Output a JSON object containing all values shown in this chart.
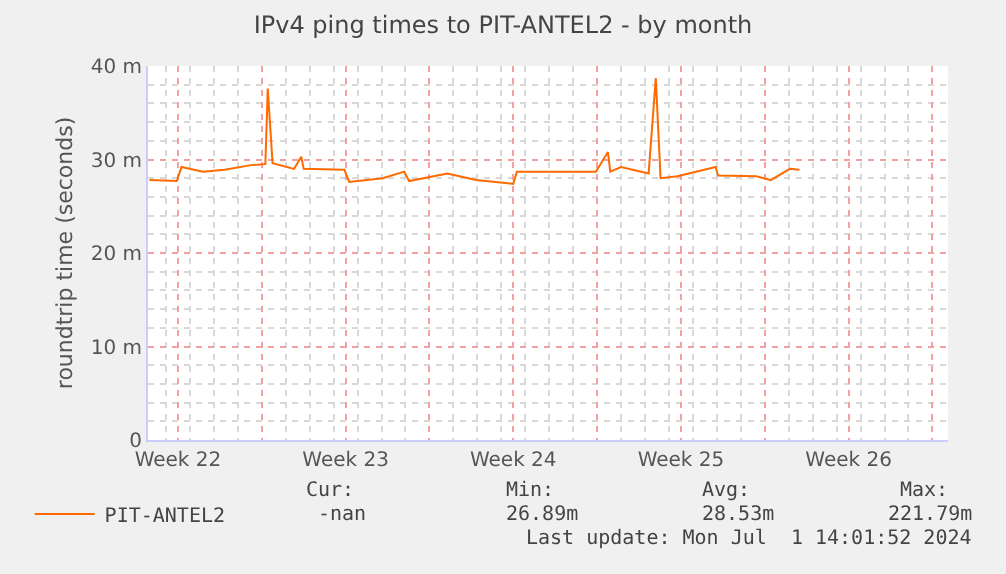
{
  "chart_data": {
    "type": "line",
    "title": "IPv4 ping times to PIT-ANTEL2 - by month",
    "ylabel": "roundtrip time (seconds)",
    "x": [
      "2024-05-29T07:30",
      "2024-05-30T10:50",
      "2024-05-30T15:36",
      "2024-05-31T13:12",
      "2024-06-01T10:48",
      "2024-06-02T13:12",
      "2024-06-03T03:36",
      "2024-06-03T06:00",
      "2024-06-03T10:48",
      "2024-06-04T08:24",
      "2024-06-04T15:36",
      "2024-06-04T18:00",
      "2024-06-06T10:48",
      "2024-06-06T15:36",
      "2024-06-08T01:12",
      "2024-06-08T22:48",
      "2024-06-09T03:36",
      "2024-06-10T18:00",
      "2024-06-11T22:48",
      "2024-06-13T12:00",
      "2024-06-13T15:36",
      "2024-06-15T13:12",
      "2024-06-16T22:48",
      "2024-06-17T10:48",
      "2024-06-17T13:12",
      "2024-06-18T00:00",
      "2024-06-19T03:36",
      "2024-06-19T10:48",
      "2024-06-19T15:36",
      "2024-06-20T08:24",
      "2024-06-21T22:48",
      "2024-06-22T01:12",
      "2024-06-23T15:36",
      "2024-06-24T06:00",
      "2024-06-25T01:12",
      "2024-06-25T10:48"
    ],
    "series": [
      {
        "name": "PIT-ANTEL2",
        "color": "#ff6a00",
        "values": [
          27.8,
          27.7,
          29.2,
          28.7,
          28.9,
          29.4,
          29.5,
          37.6,
          29.6,
          29.0,
          30.3,
          29.0,
          28.9,
          27.6,
          28.0,
          28.7,
          27.7,
          28.5,
          27.8,
          27.4,
          28.7,
          28.7,
          28.7,
          30.8,
          28.7,
          29.2,
          28.5,
          38.7,
          28.0,
          28.2,
          29.2,
          28.3,
          28.2,
          27.8,
          29.0,
          28.9
        ]
      }
    ],
    "xlim": [
      "2024-05-29T06:00",
      "2024-07-01T15:36"
    ],
    "xticks": [
      {
        "value": "2024-05-30T12:00",
        "label": "Week 22"
      },
      {
        "value": "2024-06-03",
        "label": null
      },
      {
        "value": "2024-06-06T12:00",
        "label": "Week 23"
      },
      {
        "value": "2024-06-10",
        "label": null
      },
      {
        "value": "2024-06-13T12:00",
        "label": "Week 24"
      },
      {
        "value": "2024-06-17",
        "label": null
      },
      {
        "value": "2024-06-20T12:00",
        "label": "Week 25"
      },
      {
        "value": "2024-06-24",
        "label": null
      },
      {
        "value": "2024-06-27T12:00",
        "label": "Week 26"
      },
      {
        "value": "2024-07-01",
        "label": null
      }
    ],
    "ylim": [
      0,
      40
    ],
    "yticks": [
      0,
      {
        "value": 10,
        "label": "10 m"
      },
      {
        "value": 20,
        "label": "20 m"
      },
      {
        "value": 30,
        "label": "30 m"
      },
      {
        "value": 40,
        "label": "40 m"
      }
    ],
    "grid": true,
    "legend": "bottom left",
    "line_style": "solid",
    "marker": "none",
    "annotations": [
      "Cur:",
      "Min:",
      "Avg:",
      "Max:",
      "-nan",
      "26.89m",
      "28.53m",
      "221.79m",
      "Last update: Mon Jul  1 14:01:52 2024"
    ]
  }
}
